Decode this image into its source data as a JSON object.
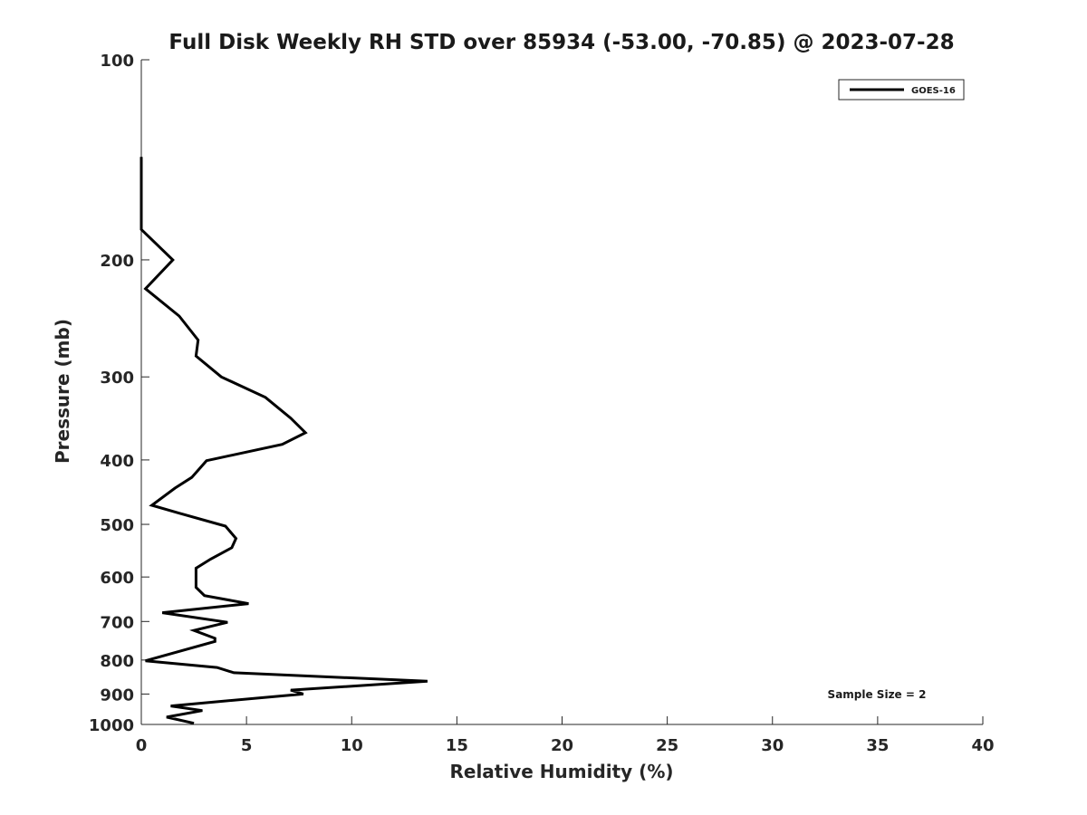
{
  "chart_data": {
    "type": "line",
    "title": "Full Disk Weekly RH STD over 85934 (-53.00, -70.85) @ 2023-07-28",
    "xlabel": "Relative Humidity (%)",
    "ylabel": "Pressure (mb)",
    "xlim": [
      0,
      40
    ],
    "ylim": [
      100,
      1000
    ],
    "yscale": "log",
    "yreversed": true,
    "x_ticks": [
      "0",
      "5",
      "10",
      "15",
      "20",
      "25",
      "30",
      "35",
      "40"
    ],
    "y_ticks": [
      "100",
      "200",
      "300",
      "400",
      "500",
      "600",
      "700",
      "800",
      "900",
      "1000"
    ],
    "grid": false,
    "legend_position": "top-right",
    "series": [
      {
        "name": "GOES-16",
        "color": "#000000",
        "points": [
          [
            0.0,
            140
          ],
          [
            0.0,
            150
          ],
          [
            0.0,
            160
          ],
          [
            0.0,
            170
          ],
          [
            0.0,
            180
          ],
          [
            1.5,
            200
          ],
          [
            0.2,
            221
          ],
          [
            1.8,
            243
          ],
          [
            2.7,
            264
          ],
          [
            2.6,
            279
          ],
          [
            3.8,
            300
          ],
          [
            5.9,
            322
          ],
          [
            7.1,
            346
          ],
          [
            7.8,
            364
          ],
          [
            6.7,
            379
          ],
          [
            3.1,
            401
          ],
          [
            2.4,
            425
          ],
          [
            1.6,
            441
          ],
          [
            0.5,
            468
          ],
          [
            1.8,
            481
          ],
          [
            4.0,
            503
          ],
          [
            4.5,
            525
          ],
          [
            4.3,
            542
          ],
          [
            3.3,
            564
          ],
          [
            2.6,
            582
          ],
          [
            2.6,
            602
          ],
          [
            2.6,
            622
          ],
          [
            3.0,
            640
          ],
          [
            5.1,
            658
          ],
          [
            1.0,
            679
          ],
          [
            4.1,
            702
          ],
          [
            2.5,
            722
          ],
          [
            3.5,
            742
          ],
          [
            3.5,
            750
          ],
          [
            0.2,
            802
          ],
          [
            3.6,
            821
          ],
          [
            4.4,
            836
          ],
          [
            13.6,
            861
          ],
          [
            7.1,
            888
          ],
          [
            7.7,
            900
          ],
          [
            3.5,
            925
          ],
          [
            1.4,
            938
          ],
          [
            2.9,
            953
          ],
          [
            1.2,
            975
          ],
          [
            2.5,
            996
          ]
        ]
      }
    ],
    "annotations": [
      "Sample Size = 2"
    ]
  }
}
